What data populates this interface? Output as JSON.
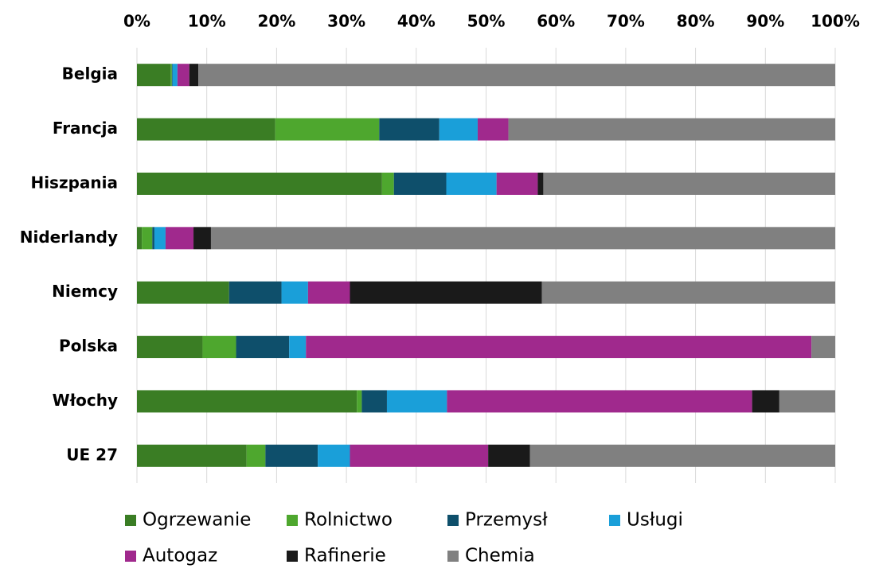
{
  "chart_data": {
    "type": "stacked-bar-horizontal",
    "categories": [
      "Belgia",
      "Francja",
      "Hiszpania",
      "Niderlandy",
      "Niemcy",
      "Polska",
      "Włochy",
      "UE 27"
    ],
    "series": [
      {
        "name": "Ogrzewanie",
        "color": "#3a7d24",
        "values": [
          4.8,
          19.8,
          35.1,
          0.7,
          13.2,
          9.4,
          31.5,
          15.7
        ]
      },
      {
        "name": "Rolnictwo",
        "color": "#4ea72e",
        "values": [
          0.2,
          14.9,
          1.7,
          1.5,
          0,
          4.8,
          0.7,
          2.7
        ]
      },
      {
        "name": "Przemysł",
        "color": "#0e4f6b",
        "values": [
          0.1,
          8.6,
          7.5,
          0.3,
          7.5,
          7.6,
          3.6,
          7.5
        ]
      },
      {
        "name": "Usługi",
        "color": "#1a9fd9",
        "values": [
          0.7,
          5.5,
          7.2,
          1.6,
          3.8,
          2.4,
          8.6,
          4.6
        ]
      },
      {
        "name": "Autogaz",
        "color": "#a0298d",
        "values": [
          1.7,
          4.4,
          5.9,
          4.0,
          6.0,
          72.4,
          43.7,
          19.8
        ]
      },
      {
        "name": "Rafinerie",
        "color": "#1a1a1a",
        "values": [
          1.3,
          0,
          0.8,
          2.5,
          27.5,
          0,
          3.9,
          6.0
        ]
      },
      {
        "name": "Chemia",
        "color": "#808080",
        "values": [
          91.2,
          46.8,
          41.8,
          89.4,
          42.0,
          3.4,
          8.0,
          43.7
        ]
      }
    ],
    "xlim": [
      0,
      100
    ],
    "xticks": [
      {
        "value": 0,
        "label": "0%"
      },
      {
        "value": 10,
        "label": "10%"
      },
      {
        "value": 20,
        "label": "20%"
      },
      {
        "value": 30,
        "label": "30%"
      },
      {
        "value": 40,
        "label": "40%"
      },
      {
        "value": 50,
        "label": "50%"
      },
      {
        "value": 60,
        "label": "60%"
      },
      {
        "value": 70,
        "label": "70%"
      },
      {
        "value": 80,
        "label": "80%"
      },
      {
        "value": 90,
        "label": "90%"
      },
      {
        "value": 100,
        "label": "100%"
      }
    ],
    "grid": true,
    "legend": "bottom"
  }
}
